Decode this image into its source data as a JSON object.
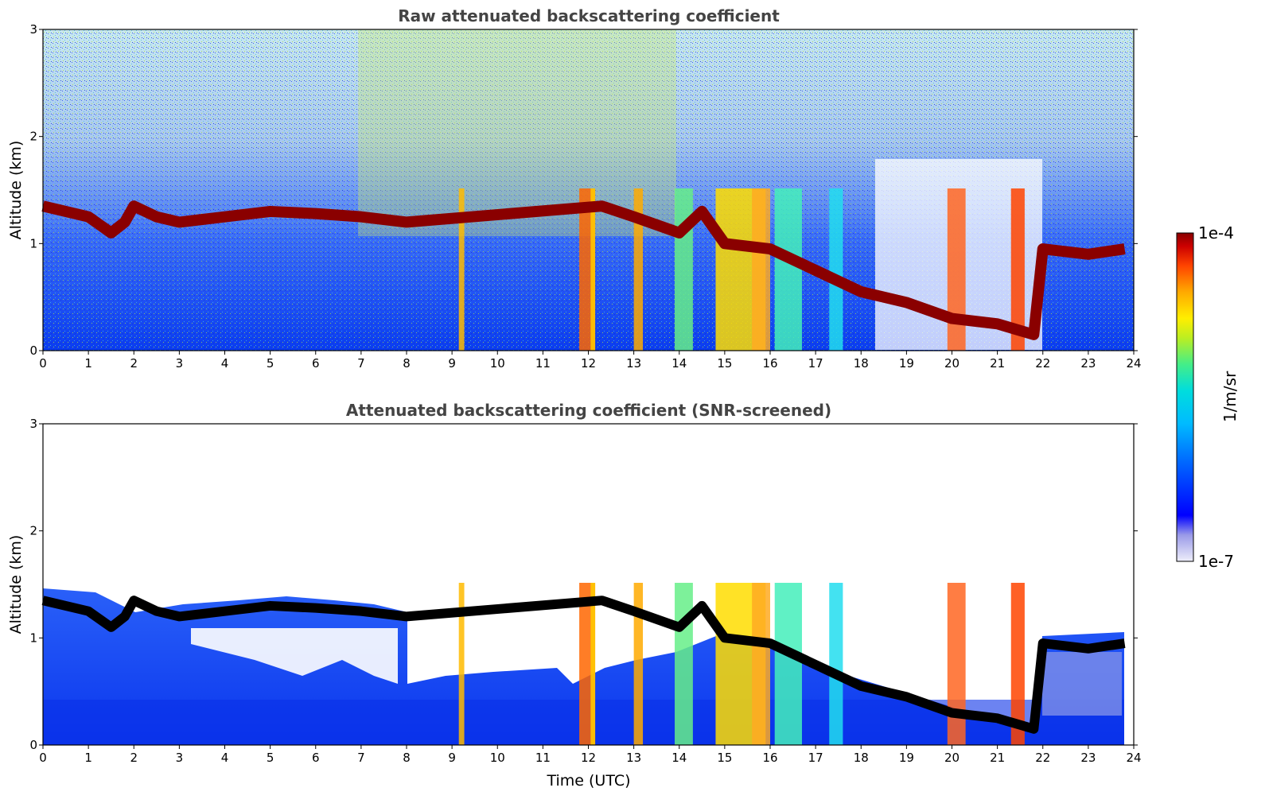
{
  "chart_data": [
    {
      "type": "heatmap",
      "title": "Raw attenuated backscattering coefficient",
      "xlabel": "",
      "ylabel": "Altitude (km)",
      "xlim": [
        0,
        24
      ],
      "ylim": [
        0,
        3
      ],
      "x_ticks": [
        "0",
        "1",
        "2",
        "3",
        "4",
        "5",
        "6",
        "7",
        "8",
        "9",
        "10",
        "11",
        "12",
        "13",
        "14",
        "15",
        "16",
        "17",
        "18",
        "19",
        "20",
        "21",
        "22",
        "23",
        "24"
      ],
      "y_ticks": [
        "0",
        "1",
        "2",
        "3"
      ],
      "cloud_base_km": {
        "x": [
          0,
          0.5,
          1,
          1.5,
          1.8,
          2,
          2.5,
          3,
          4,
          5,
          6,
          7,
          8,
          12.3,
          13,
          14,
          14.5,
          15,
          16,
          17,
          18,
          19,
          20,
          21,
          21.8,
          22,
          23,
          23.8
        ],
        "y": [
          1.35,
          1.3,
          1.25,
          1.1,
          1.2,
          1.35,
          1.25,
          1.2,
          1.25,
          1.3,
          1.28,
          1.25,
          1.2,
          1.35,
          1.25,
          1.1,
          1.3,
          1.0,
          0.95,
          0.75,
          0.55,
          0.45,
          0.3,
          0.25,
          0.15,
          0.95,
          0.9,
          0.95
        ]
      }
    },
    {
      "type": "heatmap",
      "title": "Attenuated backscattering coefficient (SNR-screened)",
      "xlabel": "Time (UTC)",
      "ylabel": "Altitude (km)",
      "xlim": [
        0,
        24
      ],
      "ylim": [
        0,
        3
      ],
      "x_ticks": [
        "0",
        "1",
        "2",
        "3",
        "4",
        "5",
        "6",
        "7",
        "8",
        "9",
        "10",
        "11",
        "12",
        "13",
        "14",
        "15",
        "16",
        "17",
        "18",
        "19",
        "20",
        "21",
        "22",
        "23",
        "24"
      ],
      "y_ticks": [
        "0",
        "1",
        "2",
        "3"
      ]
    }
  ],
  "colorbar": {
    "max_label": "1e-4",
    "min_label": "1e-7",
    "unit_label": "1/m/sr",
    "colormap": [
      "#e8e8f8",
      "#9a9ae8",
      "#0000ff",
      "#0066ff",
      "#00aaff",
      "#00dddd",
      "#44ee88",
      "#aaee33",
      "#ffee00",
      "#ffaa00",
      "#ff5500",
      "#dd0000",
      "#880000"
    ]
  }
}
